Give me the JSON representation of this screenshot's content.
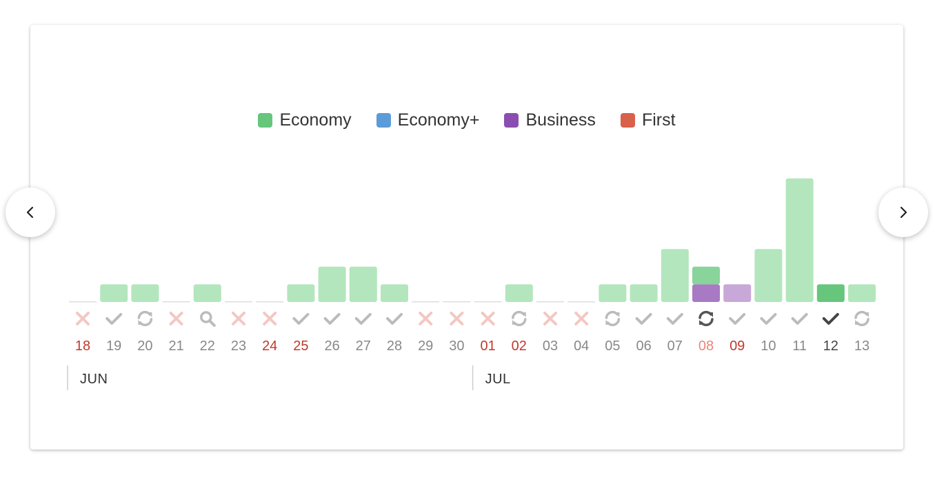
{
  "legend": [
    {
      "name": "Economy",
      "color": "#66c67c"
    },
    {
      "name": "Economy+",
      "color": "#5b9bd8"
    },
    {
      "name": "Business",
      "color": "#8b4eb0"
    },
    {
      "name": "First",
      "color": "#d9604a"
    }
  ],
  "navigation": {
    "prev_icon": "chevron-left-icon",
    "next_icon": "chevron-right-icon"
  },
  "chart_data": {
    "type": "bar",
    "stacked": true,
    "months": [
      {
        "label": "JUN",
        "start_day": "18"
      },
      {
        "label": "JUL",
        "start_day": "01"
      }
    ],
    "categories": [
      "18",
      "19",
      "20",
      "21",
      "22",
      "23",
      "24",
      "25",
      "26",
      "27",
      "28",
      "29",
      "30",
      "01",
      "02",
      "03",
      "04",
      "05",
      "06",
      "07",
      "08",
      "09",
      "10",
      "11",
      "12",
      "13"
    ],
    "series": [
      {
        "name": "Economy",
        "values": [
          0,
          1,
          1,
          0,
          1,
          0,
          0,
          1,
          2,
          2,
          1,
          0,
          0,
          0,
          1,
          0,
          0,
          1,
          1,
          3,
          1,
          0,
          3,
          7,
          1,
          1
        ]
      },
      {
        "name": "Business",
        "values": [
          0,
          0,
          0,
          0,
          0,
          0,
          0,
          0,
          0,
          0,
          0,
          0,
          0,
          0,
          0,
          0,
          0,
          0,
          0,
          0,
          1,
          1,
          0,
          0,
          0,
          0
        ]
      }
    ],
    "status_icons": [
      "cross",
      "check",
      "refresh",
      "cross",
      "search",
      "cross",
      "cross",
      "check",
      "check",
      "check",
      "check",
      "cross",
      "cross",
      "cross",
      "refresh",
      "cross",
      "cross",
      "refresh",
      "check",
      "check",
      "refresh",
      "check",
      "check",
      "check",
      "check",
      "refresh"
    ],
    "highlight": {
      "selected_day": "12",
      "current_day": "08"
    },
    "day_label_colors": [
      "#c0392b",
      "#888888",
      "#888888",
      "#888888",
      "#888888",
      "#888888",
      "#c0392b",
      "#c0392b",
      "#888888",
      "#888888",
      "#888888",
      "#888888",
      "#888888",
      "#c0392b",
      "#c0392b",
      "#888888",
      "#888888",
      "#888888",
      "#888888",
      "#888888",
      "#e8867a",
      "#c0392b",
      "#888888",
      "#888888",
      "#444444",
      "#888888"
    ],
    "colors": {
      "economy_light": "#b3e6bd",
      "economy_mid": "#88d49a",
      "economy_dark": "#66c67c",
      "business": "#a87ac4",
      "business_light": "#c8a8d8",
      "empty_line": "#dddddd",
      "check": "#bbbbbb",
      "check_dark": "#444444",
      "cross": "#f3c7c2",
      "refresh": "#bbbbbb",
      "refresh_dark": "#555555"
    }
  }
}
